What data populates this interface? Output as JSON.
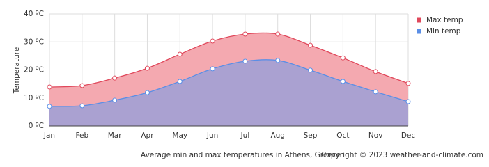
{
  "chart_data": {
    "type": "area",
    "categories": [
      "Jan",
      "Feb",
      "Mar",
      "Apr",
      "May",
      "Jun",
      "Jul",
      "Aug",
      "Sep",
      "Oct",
      "Nov",
      "Dec"
    ],
    "series": [
      {
        "name": "Max temp",
        "color": "#e0485b",
        "fill": "#f4a9b0",
        "values": [
          13.9,
          14.4,
          17.1,
          20.6,
          25.6,
          30.3,
          32.8,
          32.8,
          28.8,
          24.3,
          19.4,
          15.2
        ]
      },
      {
        "name": "Min temp",
        "color": "#5a8ee6",
        "fill": "#aaa1d1",
        "values": [
          7.0,
          7.2,
          9.2,
          11.9,
          15.9,
          20.4,
          23.1,
          23.4,
          19.9,
          15.9,
          12.2,
          8.7
        ]
      }
    ],
    "ylabel": "Temperature",
    "ylim": [
      0,
      40
    ],
    "yticks": [
      {
        "value": 0,
        "label": "0 ºC"
      },
      {
        "value": 10,
        "label": "10 ºC"
      },
      {
        "value": 20,
        "label": "20 ºC"
      },
      {
        "value": 30,
        "label": "30 ºC"
      },
      {
        "value": 40,
        "label": "40 ºC"
      }
    ],
    "grid": true,
    "legend": "right",
    "caption": "Average min and max temperatures in Athens, Greece",
    "copyright": "Copyright © 2023  weather-and-climate.com"
  }
}
